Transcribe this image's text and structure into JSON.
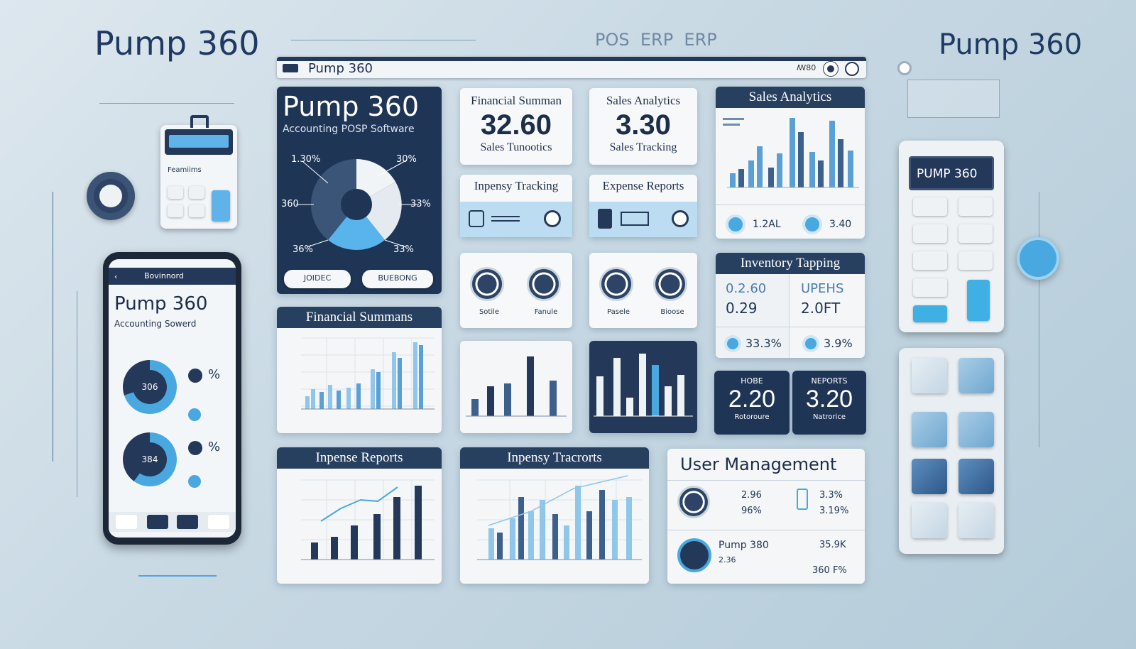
{
  "brand": {
    "top_left": "Pump 360",
    "top_right": "Pump 360",
    "header_tags": "POS  ERP  ERP"
  },
  "window": {
    "title": "Pump 360",
    "status_text": "ꟿ80"
  },
  "hero": {
    "title": "Pump 360",
    "subtitle": "Accounting POSP Software",
    "labels": [
      "1.30%",
      "30%",
      "360",
      "36%",
      "33%",
      "33%"
    ],
    "button_left": "JOIDEC",
    "button_right": "BUEBONG"
  },
  "financial_summary_card": {
    "title": "Financial Summan",
    "value": "32.60",
    "caption": "Sales Tunootics"
  },
  "sales_tracking_card": {
    "title": "Sales Analytics",
    "value": "3.30",
    "caption": "Sales Tracking"
  },
  "inpensy_tracking": {
    "title": "Inpensy Tracking"
  },
  "expense_reports_small": {
    "title": "Expense Reports"
  },
  "sales_analytics_panel": {
    "title": "Sales Analytics",
    "stat_left": "1.2AL",
    "stat_right": "3.40"
  },
  "inventory_panel": {
    "title": "Inventory Tapping",
    "left_top": "0.2.60",
    "left_mid": "0.29",
    "right_top": "UPEHS",
    "right_mid": "2.0FT",
    "left_pct": "33.3%",
    "right_pct": "3.9%"
  },
  "mini_icons_1": {
    "label_a": "Sotile",
    "label_b": "Fanule"
  },
  "mini_icons_2": {
    "label_a": "Pasele",
    "label_b": "Bioose"
  },
  "dark_stats": {
    "left_title": "HOBE",
    "left_value": "2.20",
    "left_caption": "Rotoroure",
    "right_title": "NEPORTS",
    "right_value": "3.20",
    "right_caption": "Natrorice"
  },
  "financial_summans_panel": {
    "title": "Financial Summans"
  },
  "inpense_reports_panel": {
    "title": "Inpense Reports"
  },
  "inpensy_tracrorts_panel": {
    "title": "Inpensy Tracrorts"
  },
  "user_management": {
    "title": "User Management",
    "row1_a": "2.96",
    "row1_b": "96%",
    "row1_c": "3.3%",
    "row1_d": "3.19%",
    "row2_name": "Pump 380",
    "row2_a": "35.9K",
    "row2_b": "2.36",
    "row2_c": "360 F%"
  },
  "phone": {
    "nav_title": "Bovinnord",
    "title": "Pump 360",
    "subtitle": "Accounting Sowerd",
    "donut1": "306",
    "donut2": "384",
    "pct1": "%",
    "pct2": "%"
  },
  "calculator": {
    "display": "PUMP 360"
  },
  "small_calc": {
    "label": "Feamiims"
  },
  "colors": {
    "navy": "#24395a",
    "accent": "#4aa8e0",
    "panel": "#f4f6f8"
  }
}
